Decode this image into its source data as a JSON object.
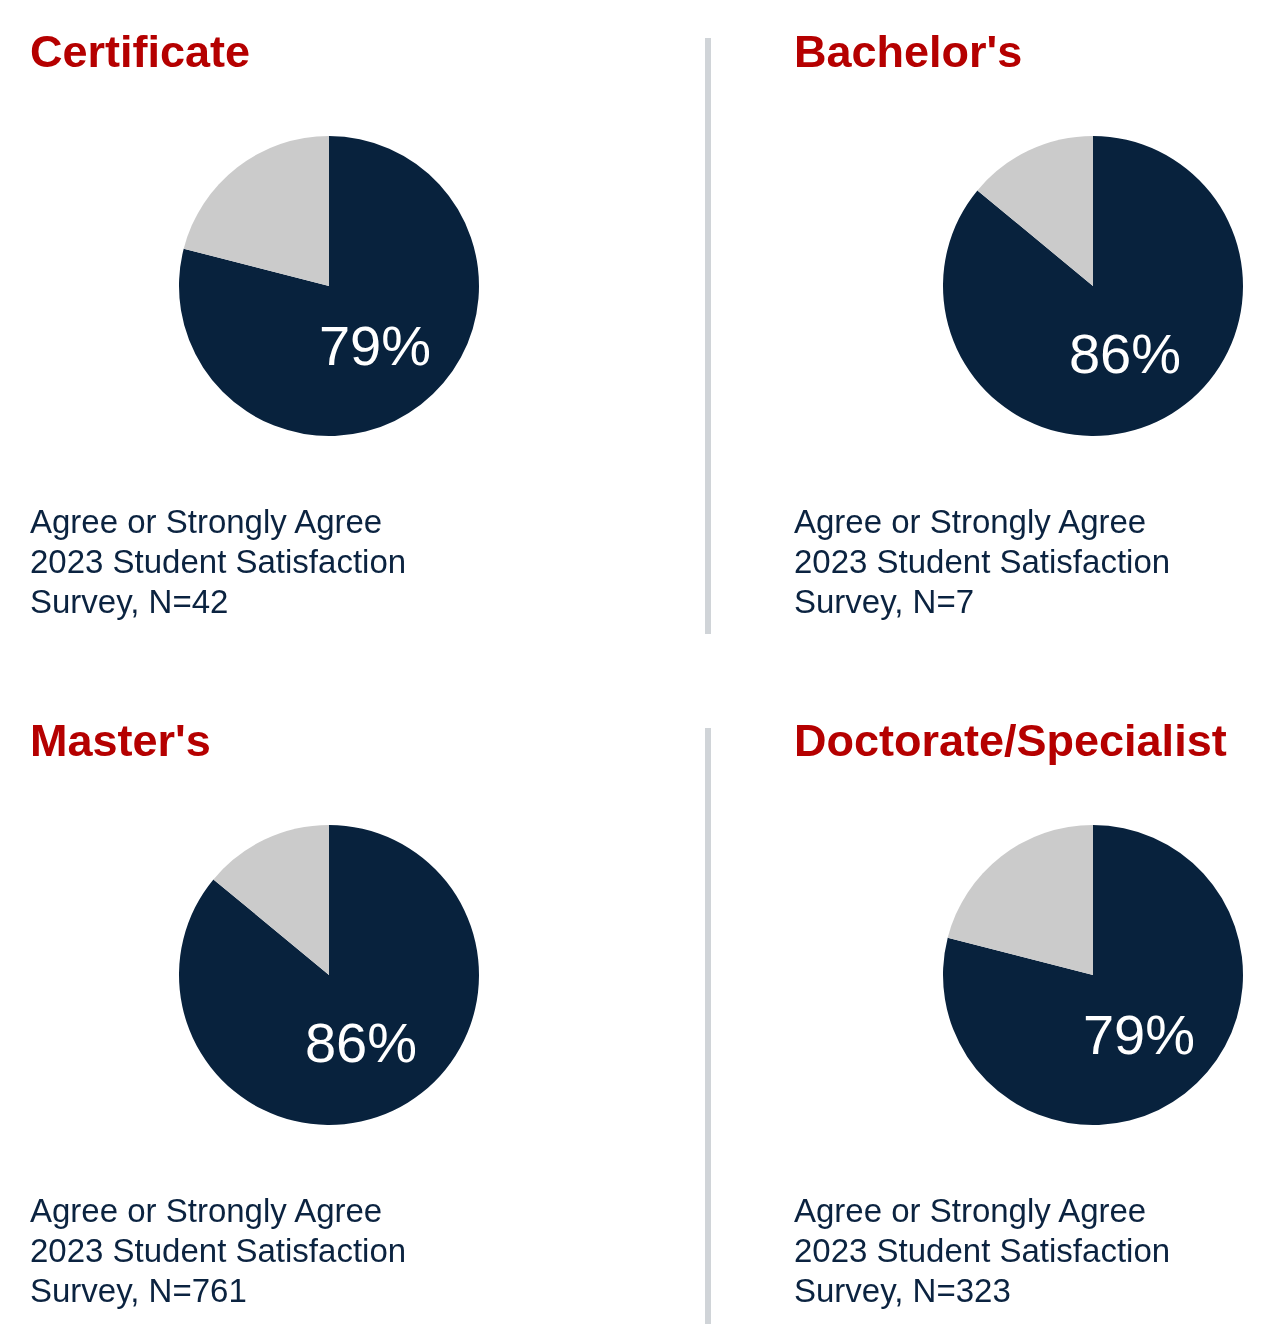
{
  "chart_data": [
    {
      "type": "pie",
      "title": "Certificate",
      "categories": [
        null,
        null
      ],
      "values": [
        79,
        21
      ],
      "colors": [
        "#08223d",
        "#cbcbcb"
      ],
      "value_labels": [
        "79%",
        null
      ],
      "annotations": [
        "Agree or Strongly Agree",
        "2023 Student Satisfaction Survey, N=42"
      ]
    },
    {
      "type": "pie",
      "title": "Bachelor's",
      "categories": [
        null,
        null
      ],
      "values": [
        86,
        14
      ],
      "colors": [
        "#08223d",
        "#cbcbcb"
      ],
      "value_labels": [
        "86%",
        null
      ],
      "annotations": [
        "Agree or Strongly Agree",
        "2023 Student Satisfaction Survey, N=7"
      ]
    },
    {
      "type": "pie",
      "title": "Master's",
      "categories": [
        null,
        null
      ],
      "values": [
        86,
        14
      ],
      "colors": [
        "#08223d",
        "#cbcbcb"
      ],
      "value_labels": [
        "86%",
        null
      ],
      "annotations": [
        "Agree or Strongly Agree",
        "2023 Student Satisfaction Survey, N=761"
      ]
    },
    {
      "type": "pie",
      "title": "Doctorate/Specialist",
      "categories": [
        null,
        null
      ],
      "values": [
        79,
        21
      ],
      "colors": [
        "#08223d",
        "#cbcbcb"
      ],
      "value_labels": [
        "79%",
        null
      ],
      "annotations": [
        "Agree or Strongly Agree",
        "2023 Student Satisfaction Survey, N=323"
      ]
    }
  ]
}
